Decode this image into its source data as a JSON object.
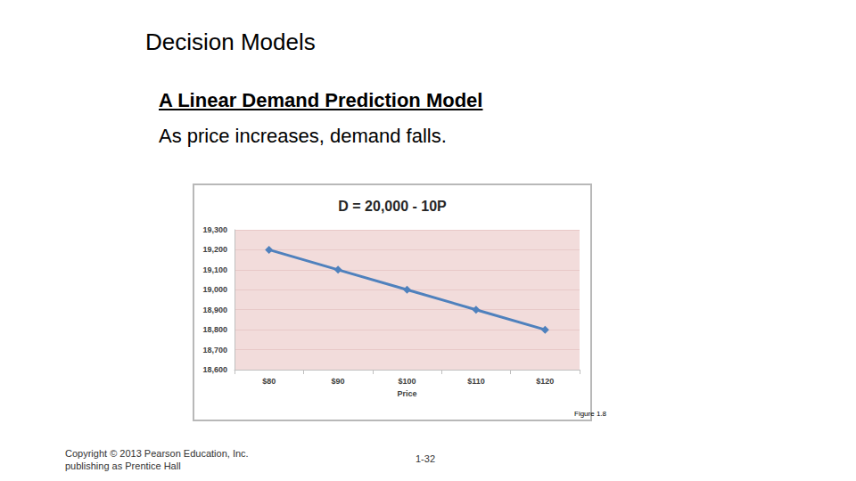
{
  "page": {
    "heading": "Decision Models",
    "subheading": "A Linear Demand Prediction Model",
    "subtitle": "As price increases, demand falls.",
    "figure_label": "Figure 1.8",
    "copyright": [
      "Copyright © 2013 Pearson Education, Inc.",
      "publishing as Prentice Hall"
    ],
    "page_number": "1-32"
  },
  "chart_data": {
    "type": "line",
    "title": "D = 20,000 - 10P",
    "x_label": "Price",
    "categories": [
      "$80",
      "$90",
      "$100",
      "$110",
      "$120"
    ],
    "values": [
      19200,
      19100,
      19000,
      18900,
      18800
    ],
    "color": "#4f81bd",
    "marker": "diamond",
    "line_style": "solid",
    "ylim": [
      18600,
      19300
    ],
    "yticks": [
      18600,
      18700,
      18800,
      18900,
      19000,
      19100,
      19200,
      19300
    ],
    "grid": true
  }
}
